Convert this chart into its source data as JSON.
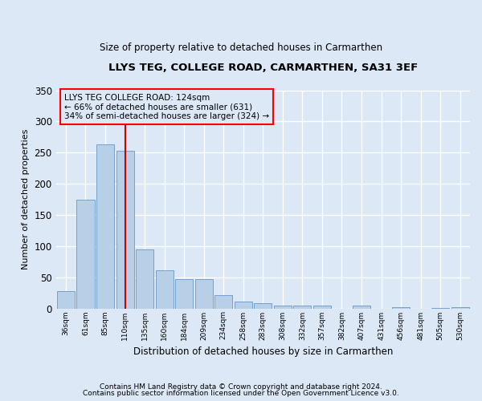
{
  "title1": "LLYS TEG, COLLEGE ROAD, CARMARTHEN, SA31 3EF",
  "title2": "Size of property relative to detached houses in Carmarthen",
  "xlabel": "Distribution of detached houses by size in Carmarthen",
  "ylabel": "Number of detached properties",
  "categories": [
    "36sqm",
    "61sqm",
    "85sqm",
    "110sqm",
    "135sqm",
    "160sqm",
    "184sqm",
    "209sqm",
    "234sqm",
    "258sqm",
    "283sqm",
    "308sqm",
    "332sqm",
    "357sqm",
    "382sqm",
    "407sqm",
    "431sqm",
    "456sqm",
    "481sqm",
    "505sqm",
    "530sqm"
  ],
  "values": [
    28,
    175,
    263,
    253,
    95,
    61,
    47,
    47,
    21,
    11,
    8,
    5,
    4,
    4,
    0,
    4,
    0,
    2,
    0,
    1,
    2
  ],
  "bar_color": "#b8cfe8",
  "bar_edge_color": "#6898c8",
  "annotation_text": "LLYS TEG COLLEGE ROAD: 124sqm\n← 66% of detached houses are smaller (631)\n34% of semi-detached houses are larger (324) →",
  "vline_x": 3.0,
  "ylim": [
    0,
    350
  ],
  "yticks": [
    0,
    50,
    100,
    150,
    200,
    250,
    300,
    350
  ],
  "footer1": "Contains HM Land Registry data © Crown copyright and database right 2024.",
  "footer2": "Contains public sector information licensed under the Open Government Licence v3.0.",
  "bg_color": "#dce8f5",
  "grid_color": "#ffffff"
}
